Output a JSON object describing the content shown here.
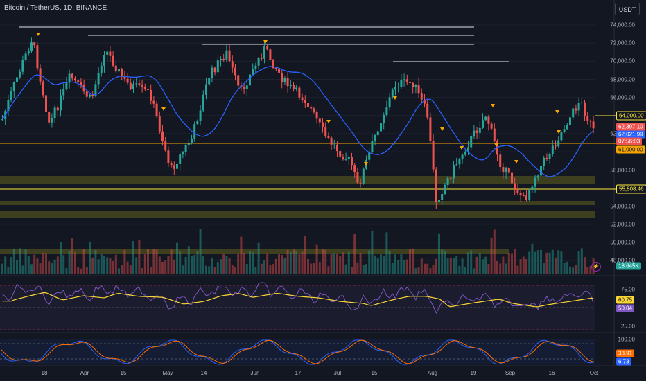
{
  "header": {
    "symbol_title": "Bitcoin / TetherUS, 1D, BINANCE",
    "currency": "USDT"
  },
  "price_axis": {
    "labels": [
      "74,000.00",
      "72,000.00",
      "70,000.00",
      "68,000.00",
      "66,000.00",
      "64,000.00",
      "62,000.00",
      "60,000.00",
      "58,000.00",
      "56,000.00",
      "54,000.00",
      "52,000.00",
      "50,000.00",
      "48,000.00"
    ],
    "tags": {
      "level_64000": "64,000.00",
      "last_price": "62,397.10",
      "sma_value": "62,021.99",
      "countdown": "07:56:03",
      "level_61000": "61,000.00",
      "level_55808": "55,808.46",
      "volume": "18.645K"
    }
  },
  "rsi_axis": {
    "labels": [
      "75.00",
      "25.00"
    ],
    "tags": {
      "rsi_ma": "60.75",
      "rsi": "50.04"
    }
  },
  "stoch_axis": {
    "labels": [
      "100.00",
      "0.00"
    ],
    "tags": {
      "k": "33.91",
      "d": "6.73"
    }
  },
  "time_axis": {
    "labels": [
      "18",
      "Apr",
      "15",
      "May",
      "14",
      "Jun",
      "17",
      "Jul",
      "15",
      "Aug",
      "19",
      "Sep",
      "16",
      "Oct"
    ]
  },
  "colors": {
    "background": "#131722",
    "up": "#26a69a",
    "down": "#ef5350",
    "sma": "#2962ff",
    "support_zone": "#5a5a1e",
    "level_yellow": "#ffeb3b",
    "level_orange": "#f7a600",
    "rsi_line": "#7e57c2",
    "rsi_ma": "#fdd835",
    "stoch_k": "#2962ff",
    "stoch_d": "#ff6d00"
  }
}
